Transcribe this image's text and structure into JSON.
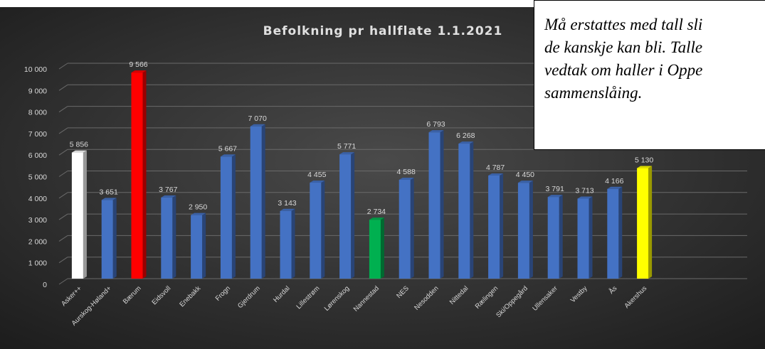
{
  "note": {
    "lines": [
      "Må erstattes med tall sli",
      "de kanskje kan bli. Talle",
      "vedtak om haller i Oppe",
      "sammenslåing."
    ]
  },
  "colors": {
    "background": "#262626",
    "default_bar": "#4472C4",
    "asker": "#FFFFFF",
    "baerum": "#FF0000",
    "nannestad": "#00B050",
    "akershus": "#FFFF00",
    "text": "#D9D9D9"
  },
  "chart_data": {
    "type": "bar",
    "title": "Befolkning pr hallflate 1.1.2021",
    "xlabel": "",
    "ylabel": "",
    "ylim": [
      0,
      10000
    ],
    "yticks": [
      0,
      1000,
      2000,
      3000,
      4000,
      5000,
      6000,
      7000,
      8000,
      9000,
      10000
    ],
    "ytick_labels": [
      "0",
      "1 000",
      "2 000",
      "3 000",
      "4 000",
      "5 000",
      "6 000",
      "7 000",
      "8 000",
      "9 000",
      "10 000"
    ],
    "grid": true,
    "categories": [
      "Asker++",
      "Aurskog-Høland+",
      "Bærum",
      "Eidsvoll",
      "Enebakk",
      "Frogn",
      "Gjerdrum",
      "Hurdal",
      "Lillestrøm",
      "Lørenskog",
      "Nannestad",
      "NES",
      "Nesodden",
      "Nittedal",
      "Rælingen",
      "Ski/Oppegård",
      "Ullensaker",
      "Vestby",
      "Ås",
      "Akershus"
    ],
    "values": [
      5856,
      3651,
      9566,
      3767,
      2950,
      5667,
      7070,
      3143,
      4455,
      5771,
      2734,
      4588,
      6793,
      6268,
      4787,
      4450,
      3791,
      3713,
      4166,
      5130
    ],
    "value_labels": [
      "5 856",
      "3 651",
      "9 566",
      "3 767",
      "2 950",
      "5 667",
      "7 070",
      "3 143",
      "4 455",
      "5 771",
      "2 734",
      "4 588",
      "6 793",
      "6 268",
      "4 787",
      "4 450",
      "3 791",
      "3 713",
      "4 166",
      "5 130"
    ],
    "bar_colors": [
      "#FFFFFF",
      "#4472C4",
      "#FF0000",
      "#4472C4",
      "#4472C4",
      "#4472C4",
      "#4472C4",
      "#4472C4",
      "#4472C4",
      "#4472C4",
      "#00B050",
      "#4472C4",
      "#4472C4",
      "#4472C4",
      "#4472C4",
      "#4472C4",
      "#4472C4",
      "#4472C4",
      "#4472C4",
      "#FFFF00"
    ]
  }
}
